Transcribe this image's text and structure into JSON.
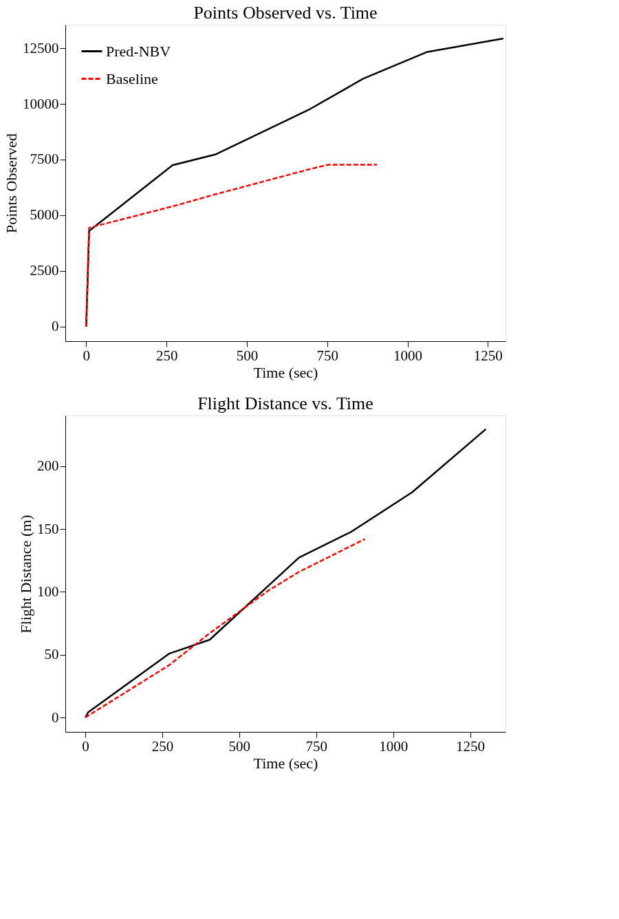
{
  "chart_data": [
    {
      "type": "line",
      "title": "Points Observed vs. Time",
      "xlabel": "Time (sec)",
      "ylabel": "Points Observed",
      "xlim": [
        -65,
        1305
      ],
      "ylim": [
        -650,
        13550
      ],
      "xticks": [
        0,
        250,
        500,
        750,
        1000,
        1250
      ],
      "yticks": [
        0,
        2500,
        5000,
        7500,
        10000,
        12500
      ],
      "grid": false,
      "legend": "top left",
      "series": [
        {
          "name": "Pred-NBV",
          "color": "#000000",
          "line_style": "solid",
          "x": [
            0,
            9,
            269,
            402,
            692,
            862,
            1059,
            1298
          ],
          "values": [
            0,
            4300,
            7250,
            7730,
            9730,
            11130,
            12320,
            12930
          ]
        },
        {
          "name": "Baseline",
          "color": "#ff0000",
          "line_style": "dashed",
          "x": [
            0,
            9,
            269,
            402,
            693,
            753,
            905
          ],
          "values": [
            0,
            4440,
            5400,
            5940,
            7060,
            7270,
            7270
          ]
        }
      ]
    },
    {
      "type": "line",
      "title": "Flight Distance vs. Time",
      "xlabel": "Time (sec)",
      "ylabel": "Flight Distance (m)",
      "xlim": [
        -65,
        1365
      ],
      "ylim": [
        -11.5,
        240.5
      ],
      "xticks": [
        0,
        250,
        500,
        750,
        1000,
        1250
      ],
      "yticks": [
        0,
        50,
        100,
        150,
        200
      ],
      "grid": false,
      "legend": "top left",
      "series": [
        {
          "name": "Pred-NBV",
          "color": "#000000",
          "line_style": "solid",
          "x": [
            0,
            9,
            273,
            404,
            694,
            864,
            1062,
            1301
          ],
          "values": [
            0,
            4.1,
            50.9,
            61.9,
            127.3,
            147.9,
            179.4,
            229.6
          ]
        },
        {
          "name": "Baseline",
          "color": "#ff0000",
          "line_style": "dashed",
          "x": [
            0,
            273,
            404,
            594,
            694,
            908
          ],
          "values": [
            0,
            41.8,
            67.1,
            101,
            115.9,
            142.1
          ]
        }
      ]
    }
  ]
}
